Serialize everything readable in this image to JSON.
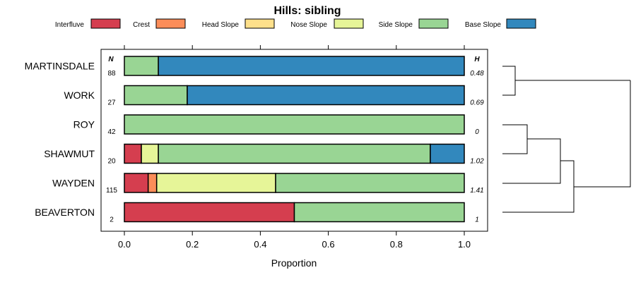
{
  "chart_data": {
    "type": "bar",
    "orientation": "horizontal-stacked-proportion",
    "title": "Hills: sibling",
    "xlabel": "Proportion",
    "ylabel": "",
    "xlim": [
      0,
      1
    ],
    "xticks": [
      "0.0",
      "0.2",
      "0.4",
      "0.6",
      "0.8",
      "1.0"
    ],
    "legend_position": "top",
    "categories": [
      "MARTINSDALE",
      "WORK",
      "ROY",
      "SHAWMUT",
      "WAYDEN",
      "BEAVERTON"
    ],
    "n_header": "N",
    "h_header": "H",
    "n_values": [
      "88",
      "27",
      "42",
      "20",
      "115",
      "2"
    ],
    "h_values": [
      "0.48",
      "0.69",
      "0",
      "1.02",
      "1.41",
      "1"
    ],
    "series": [
      {
        "name": "Interfluve",
        "color": "#d53e4f",
        "values": [
          0,
          0,
          0,
          0.05,
          0.07,
          0.5
        ]
      },
      {
        "name": "Crest",
        "color": "#fc8d59",
        "values": [
          0,
          0,
          0,
          0,
          0.025,
          0
        ]
      },
      {
        "name": "Head Slope",
        "color": "#fee08b",
        "values": [
          0,
          0,
          0,
          0,
          0,
          0
        ]
      },
      {
        "name": "Nose Slope",
        "color": "#e6f598",
        "values": [
          0,
          0,
          0,
          0.05,
          0.35,
          0
        ]
      },
      {
        "name": "Side Slope",
        "color": "#99d594",
        "values": [
          0.1,
          0.185,
          1.0,
          0.8,
          0.555,
          0.5
        ]
      },
      {
        "name": "Base Slope",
        "color": "#3288bd",
        "values": [
          0.9,
          0.815,
          0,
          0.1,
          0,
          0
        ]
      }
    ],
    "dendrogram": {
      "merges": [
        [
          "MARTINSDALE",
          "WORK"
        ],
        [
          "ROY",
          "SHAWMUT"
        ],
        [
          "ROY+SHAWMUT",
          "WAYDEN"
        ],
        [
          "ROY+SHAWMUT+WAYDEN",
          "BEAVERTON"
        ],
        [
          "MARTINSDALE+WORK",
          "ROY+SHAWMUT+WAYDEN+BEAVERTON"
        ]
      ]
    }
  }
}
